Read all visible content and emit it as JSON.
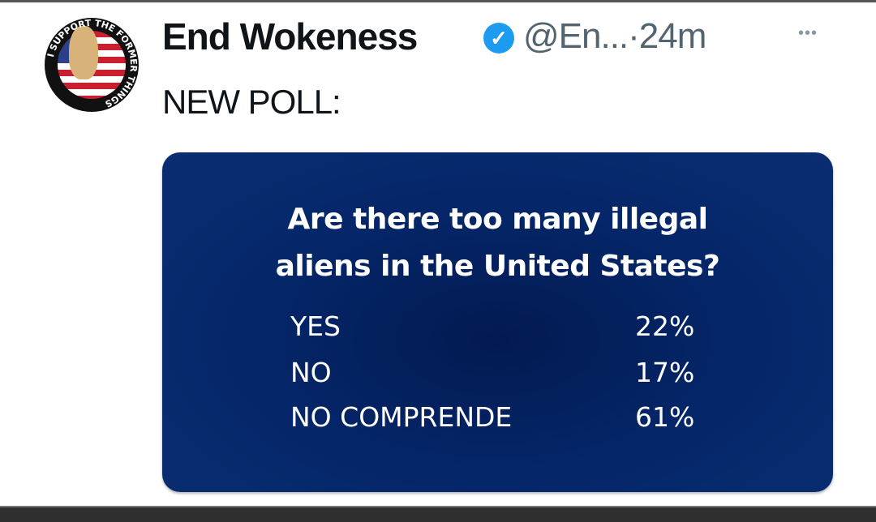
{
  "tweet": {
    "display_name": "End Wokeness",
    "verified_icon": "verified-badge-icon",
    "handle_time": "@En...·24m",
    "more_icon": "more-icon",
    "text": "NEW POLL:",
    "avatar_text": "I SUPPORT THE FORMER THINGS"
  },
  "poll_image": {
    "question_line1": "Are there too many illegal",
    "question_line2": "aliens in the United States?",
    "rows": [
      {
        "label": "YES",
        "value": "22%"
      },
      {
        "label": "NO",
        "value": "17%"
      },
      {
        "label": "NO COMPRENDE",
        "value": "61%"
      }
    ],
    "background_color": "#05276a"
  }
}
